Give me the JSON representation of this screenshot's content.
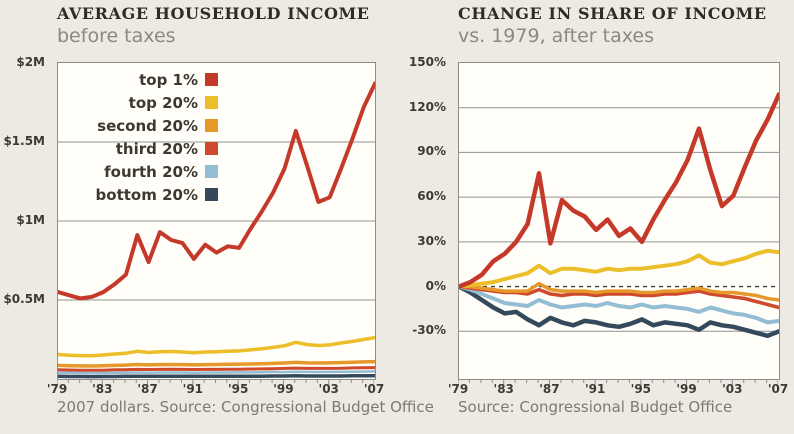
{
  "colors": {
    "background": "#edeae3",
    "plot_background": "#fffef8",
    "axis_border": "#8e8c86",
    "gridline": "#919191",
    "zero_line": "#3c3c3c",
    "title": "#2f2b27",
    "subtitle": "#8d8880",
    "tick_label": "#3d3934",
    "caption": "#7e7a72"
  },
  "chart_data": [
    {
      "type": "line",
      "title": "AVERAGE HOUSEHOLD INCOME",
      "subtitle": "before taxes",
      "caption": "2007 dollars. Source: Congressional Budget Office",
      "x": [
        1979,
        1980,
        1981,
        1982,
        1983,
        1984,
        1985,
        1986,
        1987,
        1988,
        1989,
        1990,
        1991,
        1992,
        1993,
        1994,
        1995,
        1996,
        1997,
        1998,
        1999,
        2000,
        2001,
        2002,
        2003,
        2004,
        2005,
        2006,
        2007
      ],
      "xtick_labels": [
        "'79",
        "'83",
        "'87",
        "'91",
        "'95",
        "'99",
        "'03",
        "'07"
      ],
      "xtick_every": 4,
      "ylim": [
        0,
        2
      ],
      "ytick_values": [
        0.5,
        1.0,
        1.5,
        2.0
      ],
      "ytick_labels": [
        "$0.5M",
        "$1M",
        "$1.5M",
        "$2M"
      ],
      "y_values_unit": "millions of 2007 dollars",
      "grid": true,
      "legend": true,
      "zero_line_dashed": false,
      "series": [
        {
          "name": "top 1%",
          "color": "#c5392b",
          "width": 4,
          "values": [
            0.55,
            0.53,
            0.51,
            0.52,
            0.55,
            0.6,
            0.66,
            0.91,
            0.74,
            0.93,
            0.88,
            0.86,
            0.76,
            0.85,
            0.8,
            0.84,
            0.83,
            0.95,
            1.06,
            1.18,
            1.33,
            1.57,
            1.35,
            1.12,
            1.15,
            1.33,
            1.52,
            1.72,
            1.87
          ]
        },
        {
          "name": "top 20%",
          "color": "#ecbe29",
          "width": 3.5,
          "values": [
            0.155,
            0.15,
            0.148,
            0.147,
            0.152,
            0.158,
            0.163,
            0.175,
            0.168,
            0.173,
            0.174,
            0.171,
            0.166,
            0.171,
            0.173,
            0.176,
            0.178,
            0.184,
            0.192,
            0.2,
            0.21,
            0.232,
            0.218,
            0.212,
            0.216,
            0.228,
            0.238,
            0.25,
            0.262
          ]
        },
        {
          "name": "second 20%",
          "color": "#e6982a",
          "width": 3.5,
          "values": [
            0.086,
            0.084,
            0.083,
            0.082,
            0.084,
            0.086,
            0.088,
            0.092,
            0.089,
            0.091,
            0.092,
            0.091,
            0.089,
            0.091,
            0.092,
            0.093,
            0.094,
            0.095,
            0.097,
            0.099,
            0.101,
            0.105,
            0.102,
            0.101,
            0.102,
            0.104,
            0.106,
            0.108,
            0.11
          ]
        },
        {
          "name": "third 20%",
          "color": "#cf4a2c",
          "width": 3,
          "values": [
            0.058,
            0.057,
            0.056,
            0.055,
            0.056,
            0.058,
            0.059,
            0.061,
            0.06,
            0.061,
            0.062,
            0.061,
            0.06,
            0.061,
            0.061,
            0.062,
            0.062,
            0.063,
            0.064,
            0.065,
            0.067,
            0.069,
            0.067,
            0.067,
            0.067,
            0.068,
            0.07,
            0.071,
            0.072
          ]
        },
        {
          "name": "fourth 20%",
          "color": "#92bdd3",
          "width": 2.5,
          "values": [
            0.04,
            0.039,
            0.038,
            0.038,
            0.038,
            0.039,
            0.04,
            0.041,
            0.04,
            0.041,
            0.041,
            0.041,
            0.04,
            0.041,
            0.041,
            0.041,
            0.042,
            0.042,
            0.043,
            0.044,
            0.044,
            0.046,
            0.045,
            0.044,
            0.045,
            0.046,
            0.046,
            0.047,
            0.048
          ]
        },
        {
          "name": "bottom 20%",
          "color": "#34495c",
          "width": 3.5,
          "values": [
            0.017,
            0.016,
            0.016,
            0.015,
            0.016,
            0.016,
            0.017,
            0.017,
            0.017,
            0.017,
            0.018,
            0.017,
            0.017,
            0.017,
            0.017,
            0.017,
            0.018,
            0.018,
            0.018,
            0.019,
            0.019,
            0.02,
            0.019,
            0.019,
            0.019,
            0.019,
            0.02,
            0.02,
            0.02
          ]
        }
      ]
    },
    {
      "type": "line",
      "title": "CHANGE IN SHARE OF INCOME",
      "subtitle": "vs. 1979, after taxes",
      "caption": "Source: Congressional Budget Office",
      "x": [
        1979,
        1980,
        1981,
        1982,
        1983,
        1984,
        1985,
        1986,
        1987,
        1988,
        1989,
        1990,
        1991,
        1992,
        1993,
        1994,
        1995,
        1996,
        1997,
        1998,
        1999,
        2000,
        2001,
        2002,
        2003,
        2004,
        2005,
        2006,
        2007
      ],
      "xtick_labels": [
        "'79",
        "'83",
        "'87",
        "'91",
        "'95",
        "'99",
        "'03",
        "'07"
      ],
      "xtick_every": 4,
      "ylim": [
        -62,
        150
      ],
      "ytick_values": [
        -30,
        0,
        30,
        60,
        90,
        120,
        150
      ],
      "ytick_labels": [
        "-30%",
        "0%",
        "30%",
        "60%",
        "90%",
        "120%",
        "150%"
      ],
      "y_values_unit": "percent change vs. 1979",
      "grid": true,
      "legend": false,
      "zero_line_dashed": true,
      "series": [
        {
          "name": "top 1%",
          "color": "#c5392b",
          "width": 4.5,
          "values": [
            0,
            3,
            8,
            17,
            22,
            30,
            42,
            76,
            29,
            58,
            51,
            47,
            38,
            45,
            34,
            39,
            30,
            45,
            58,
            70,
            85,
            106,
            78,
            54,
            61,
            80,
            98,
            112,
            129
          ]
        },
        {
          "name": "top 20%",
          "color": "#ecbe29",
          "width": 4,
          "values": [
            0,
            1,
            2,
            3,
            5,
            7,
            9,
            14,
            9,
            12,
            12,
            11,
            10,
            12,
            11,
            12,
            12,
            13,
            14,
            15,
            17,
            21,
            16,
            15,
            17,
            19,
            22,
            24,
            23
          ]
        },
        {
          "name": "second 20%",
          "color": "#e6982a",
          "width": 3.5,
          "values": [
            0,
            0,
            -1,
            -2,
            -3,
            -3,
            -3,
            2,
            -2,
            -3,
            -3,
            -3,
            -4,
            -3,
            -3,
            -3,
            -4,
            -4,
            -3,
            -3,
            -2,
            -1,
            -3,
            -4,
            -4,
            -5,
            -6,
            -8,
            -9
          ]
        },
        {
          "name": "third 20%",
          "color": "#cf4a2c",
          "width": 3.5,
          "values": [
            0,
            -1,
            -2,
            -3,
            -4,
            -4,
            -5,
            -2,
            -5,
            -6,
            -5,
            -5,
            -6,
            -5,
            -5,
            -5,
            -6,
            -6,
            -5,
            -5,
            -4,
            -3,
            -5,
            -6,
            -7,
            -8,
            -10,
            -12,
            -14
          ]
        },
        {
          "name": "fourth 20%",
          "color": "#92bdd3",
          "width": 4,
          "values": [
            0,
            -2,
            -5,
            -8,
            -11,
            -12,
            -13,
            -9,
            -12,
            -14,
            -13,
            -12,
            -13,
            -11,
            -13,
            -14,
            -12,
            -14,
            -13,
            -14,
            -15,
            -17,
            -14,
            -16,
            -18,
            -19,
            -21,
            -24,
            -23
          ]
        },
        {
          "name": "bottom 20%",
          "color": "#34495c",
          "width": 4.5,
          "values": [
            0,
            -4,
            -9,
            -14,
            -18,
            -17,
            -22,
            -26,
            -21,
            -24,
            -26,
            -23,
            -24,
            -26,
            -27,
            -25,
            -22,
            -26,
            -24,
            -25,
            -26,
            -29,
            -24,
            -26,
            -27,
            -29,
            -31,
            -33,
            -30
          ]
        }
      ]
    }
  ]
}
